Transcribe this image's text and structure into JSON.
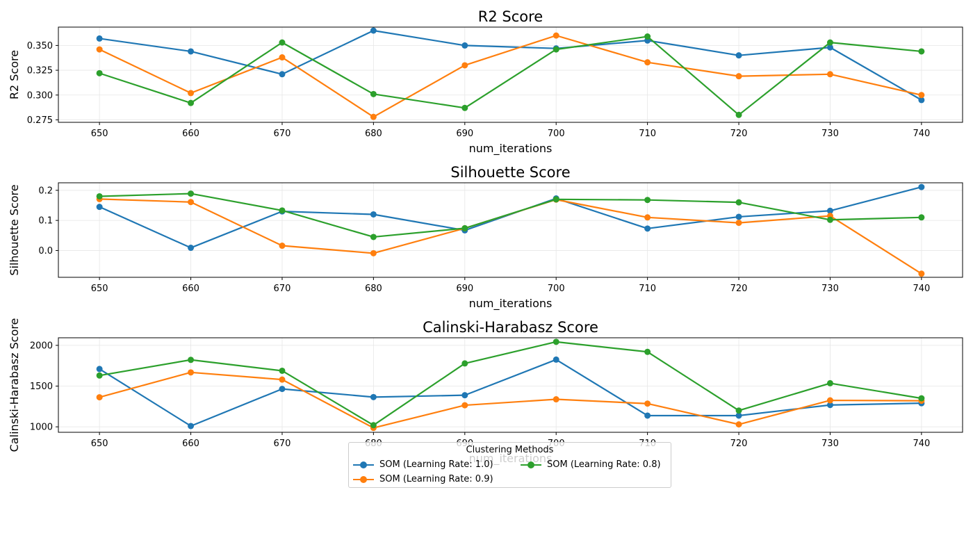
{
  "colors": {
    "series1": "#1f77b4",
    "series2": "#ff7f0e",
    "series3": "#2ca02c",
    "grid": "#e6e6e6",
    "axis": "#000000"
  },
  "legend": {
    "title": "Clustering Methods",
    "entries": [
      "SOM (Learning Rate: 1.0)",
      "SOM (Learning Rate: 0.9)",
      "SOM (Learning Rate: 0.8)"
    ],
    "placement": "lower-center"
  },
  "chart_data": [
    {
      "type": "line",
      "title": "R2 Score",
      "xlabel": "num_iterations",
      "ylabel": "R2 Score",
      "x": [
        650,
        660,
        670,
        680,
        690,
        700,
        710,
        720,
        730,
        740
      ],
      "xticks": [
        "650",
        "660",
        "670",
        "680",
        "690",
        "700",
        "710",
        "720",
        "730",
        "740"
      ],
      "yticks": [
        "0.275",
        "0.300",
        "0.325",
        "0.350"
      ],
      "ytick_values": [
        0.275,
        0.3,
        0.325,
        0.35
      ],
      "xlim": [
        645.5,
        744.5
      ],
      "ylim": [
        0.2725,
        0.3685
      ],
      "grid": true,
      "series": [
        {
          "name": "SOM (Learning Rate: 1.0)",
          "values": [
            0.357,
            0.344,
            0.321,
            0.365,
            0.35,
            0.347,
            0.355,
            0.34,
            0.348,
            0.295
          ]
        },
        {
          "name": "SOM (Learning Rate: 0.9)",
          "values": [
            0.346,
            0.302,
            0.338,
            0.278,
            0.33,
            0.36,
            0.333,
            0.319,
            0.321,
            0.3
          ]
        },
        {
          "name": "SOM (Learning Rate: 0.8)",
          "values": [
            0.322,
            0.292,
            0.353,
            0.301,
            0.287,
            0.346,
            0.359,
            0.28,
            0.353,
            0.344
          ]
        }
      ]
    },
    {
      "type": "line",
      "title": "Silhouette Score",
      "xlabel": "num_iterations",
      "ylabel": "Silhouette Score",
      "x": [
        650,
        660,
        670,
        680,
        690,
        700,
        710,
        720,
        730,
        740
      ],
      "xticks": [
        "650",
        "660",
        "670",
        "680",
        "690",
        "700",
        "710",
        "720",
        "730",
        "740"
      ],
      "yticks": [
        "0.0",
        "0.1",
        "0.2"
      ],
      "ytick_values": [
        0.0,
        0.1,
        0.2
      ],
      "xlim": [
        645.5,
        744.5
      ],
      "ylim": [
        -0.089,
        0.225
      ],
      "grid": true,
      "series": [
        {
          "name": "SOM (Learning Rate: 1.0)",
          "values": [
            0.145,
            0.009,
            0.13,
            0.12,
            0.067,
            0.173,
            0.073,
            0.112,
            0.132,
            0.211
          ]
        },
        {
          "name": "SOM (Learning Rate: 0.9)",
          "values": [
            0.171,
            0.161,
            0.016,
            -0.009,
            0.074,
            0.169,
            0.11,
            0.092,
            0.115,
            -0.077
          ]
        },
        {
          "name": "SOM (Learning Rate: 0.8)",
          "values": [
            0.18,
            0.189,
            0.133,
            0.045,
            0.074,
            0.17,
            0.168,
            0.16,
            0.102,
            0.11
          ]
        }
      ]
    },
    {
      "type": "line",
      "title": "Calinski-Harabasz Score",
      "xlabel": "num_iterations",
      "ylabel": "Calinski-Harabasz Score",
      "x": [
        650,
        660,
        670,
        680,
        690,
        700,
        710,
        720,
        730,
        740
      ],
      "xticks": [
        "650",
        "660",
        "670",
        "680",
        "690",
        "700",
        "710",
        "720",
        "730",
        "740"
      ],
      "yticks": [
        "1000",
        "1500",
        "2000"
      ],
      "ytick_values": [
        1000,
        1500,
        2000
      ],
      "xlim": [
        645.5,
        744.5
      ],
      "ylim": [
        933,
        2093
      ],
      "grid": true,
      "series": [
        {
          "name": "SOM (Learning Rate: 1.0)",
          "values": [
            1710,
            1010,
            1465,
            1365,
            1388,
            1825,
            1138,
            1138,
            1268,
            1290
          ]
        },
        {
          "name": "SOM (Learning Rate: 0.9)",
          "values": [
            1363,
            1668,
            1580,
            987,
            1265,
            1338,
            1285,
            1030,
            1325,
            1320
          ]
        },
        {
          "name": "SOM (Learning Rate: 0.8)",
          "values": [
            1630,
            1822,
            1688,
            1020,
            1778,
            2043,
            1920,
            1200,
            1535,
            1350
          ]
        }
      ]
    }
  ]
}
